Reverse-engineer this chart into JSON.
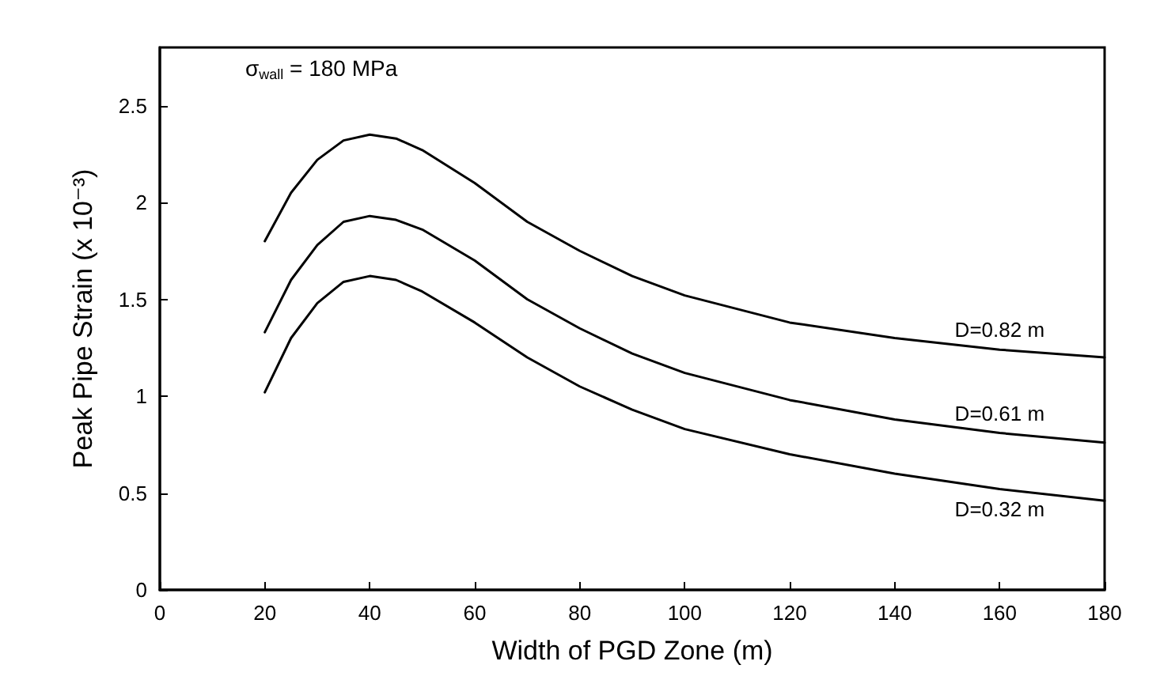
{
  "chart_data": {
    "type": "line",
    "xlabel": "Width of PGD Zone (m)",
    "ylabel": "Peak Pipe Strain (x 10⁻³)",
    "annotations": [
      "σ$_{wall}$ = 180 MPa"
    ],
    "x": [
      20,
      25,
      30,
      35,
      40,
      45,
      50,
      60,
      70,
      80,
      90,
      100,
      120,
      140,
      160,
      180
    ],
    "series": [
      {
        "name": "D=0.82 m",
        "color": "#000000",
        "values": [
          1.8,
          2.05,
          2.22,
          2.32,
          2.35,
          2.33,
          2.27,
          2.1,
          1.9,
          1.75,
          1.62,
          1.52,
          1.38,
          1.3,
          1.24,
          1.2
        ]
      },
      {
        "name": "D=0.61 m",
        "color": "#000000",
        "values": [
          1.33,
          1.6,
          1.78,
          1.9,
          1.93,
          1.91,
          1.86,
          1.7,
          1.5,
          1.35,
          1.22,
          1.12,
          0.98,
          0.88,
          0.81,
          0.76
        ]
      },
      {
        "name": "D=0.32 m",
        "color": "#000000",
        "values": [
          1.02,
          1.3,
          1.48,
          1.59,
          1.62,
          1.6,
          1.54,
          1.38,
          1.2,
          1.05,
          0.93,
          0.83,
          0.7,
          0.6,
          0.52,
          0.46
        ]
      }
    ],
    "xlim": [
      0,
      180
    ],
    "xticks": [
      0,
      20,
      40,
      60,
      80,
      100,
      120,
      140,
      160,
      180
    ],
    "ylim": [
      0,
      2.8
    ],
    "yticks": [
      0,
      0.5,
      1,
      1.5,
      2,
      2.5
    ],
    "grid": false,
    "legend": false,
    "marker": "none",
    "line_style": "solid"
  }
}
